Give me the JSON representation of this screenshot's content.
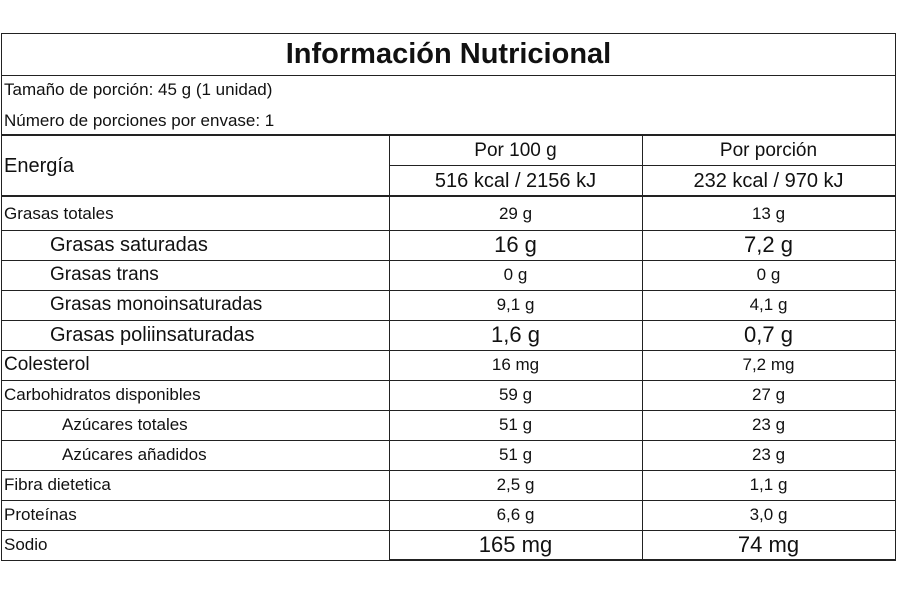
{
  "title": "Información Nutricional",
  "serving_size": "Tamaño de porción: 45 g (1 unidad)",
  "servings_per_container": "Número de porciones por envase: 1",
  "header": {
    "label": "Energía",
    "columns": [
      "Por 100 g",
      "Por porción"
    ],
    "energy": [
      "516 kcal / 2156 kJ",
      "232 kcal / 970 kJ"
    ]
  },
  "rows": [
    [
      "Grasas totales",
      "29 g",
      "13 g"
    ],
    [
      "Grasas saturadas",
      "16 g",
      "7,2 g"
    ],
    [
      "Grasas trans",
      "0 g",
      "0 g"
    ],
    [
      "Grasas monoinsaturadas",
      "9,1 g",
      "4,1 g"
    ],
    [
      "Grasas poliinsaturadas",
      "1,6 g",
      "0,7 g"
    ],
    [
      "Colesterol",
      "16 mg",
      "7,2 mg"
    ],
    [
      "Carbohidratos disponibles",
      "59 g",
      "27 g"
    ],
    [
      "Azúcares totales",
      "51 g",
      "23 g"
    ],
    [
      "Azúcares añadidos",
      "51 g",
      "23 g"
    ],
    [
      "Fibra dietetica",
      "2,5 g",
      "1,1 g"
    ],
    [
      "Proteínas",
      "6,6 g",
      "3,0 g"
    ],
    [
      "Sodio",
      "165 mg",
      "74 mg"
    ]
  ]
}
